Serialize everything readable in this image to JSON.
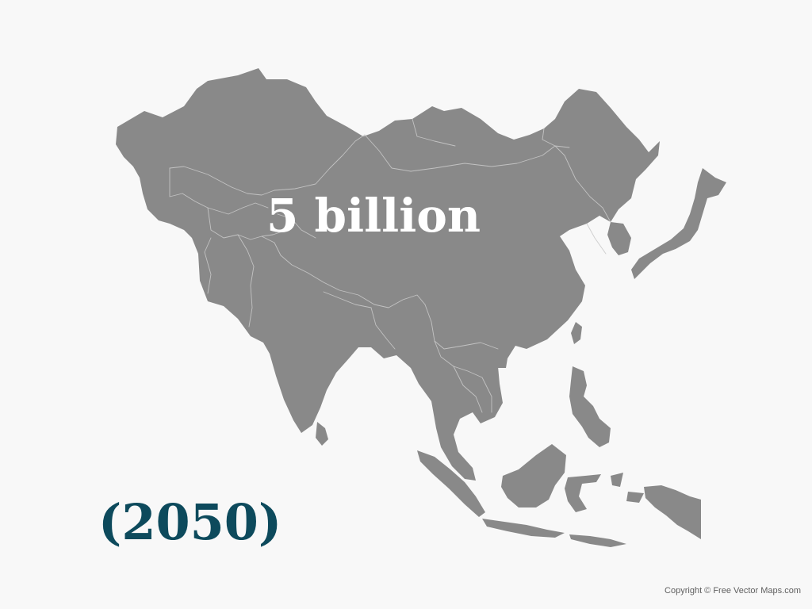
{
  "map": {
    "region": "Asia",
    "land_color": "#898989",
    "border_color": "#c9c9c9",
    "background_color": "#f8f8f8"
  },
  "headline": {
    "text": "5 billion",
    "color": "#ffffff"
  },
  "year_label": {
    "text": "(2050)",
    "color": "#0d4a5c"
  },
  "credit": {
    "text": "Copyright © Free Vector Maps.com"
  }
}
